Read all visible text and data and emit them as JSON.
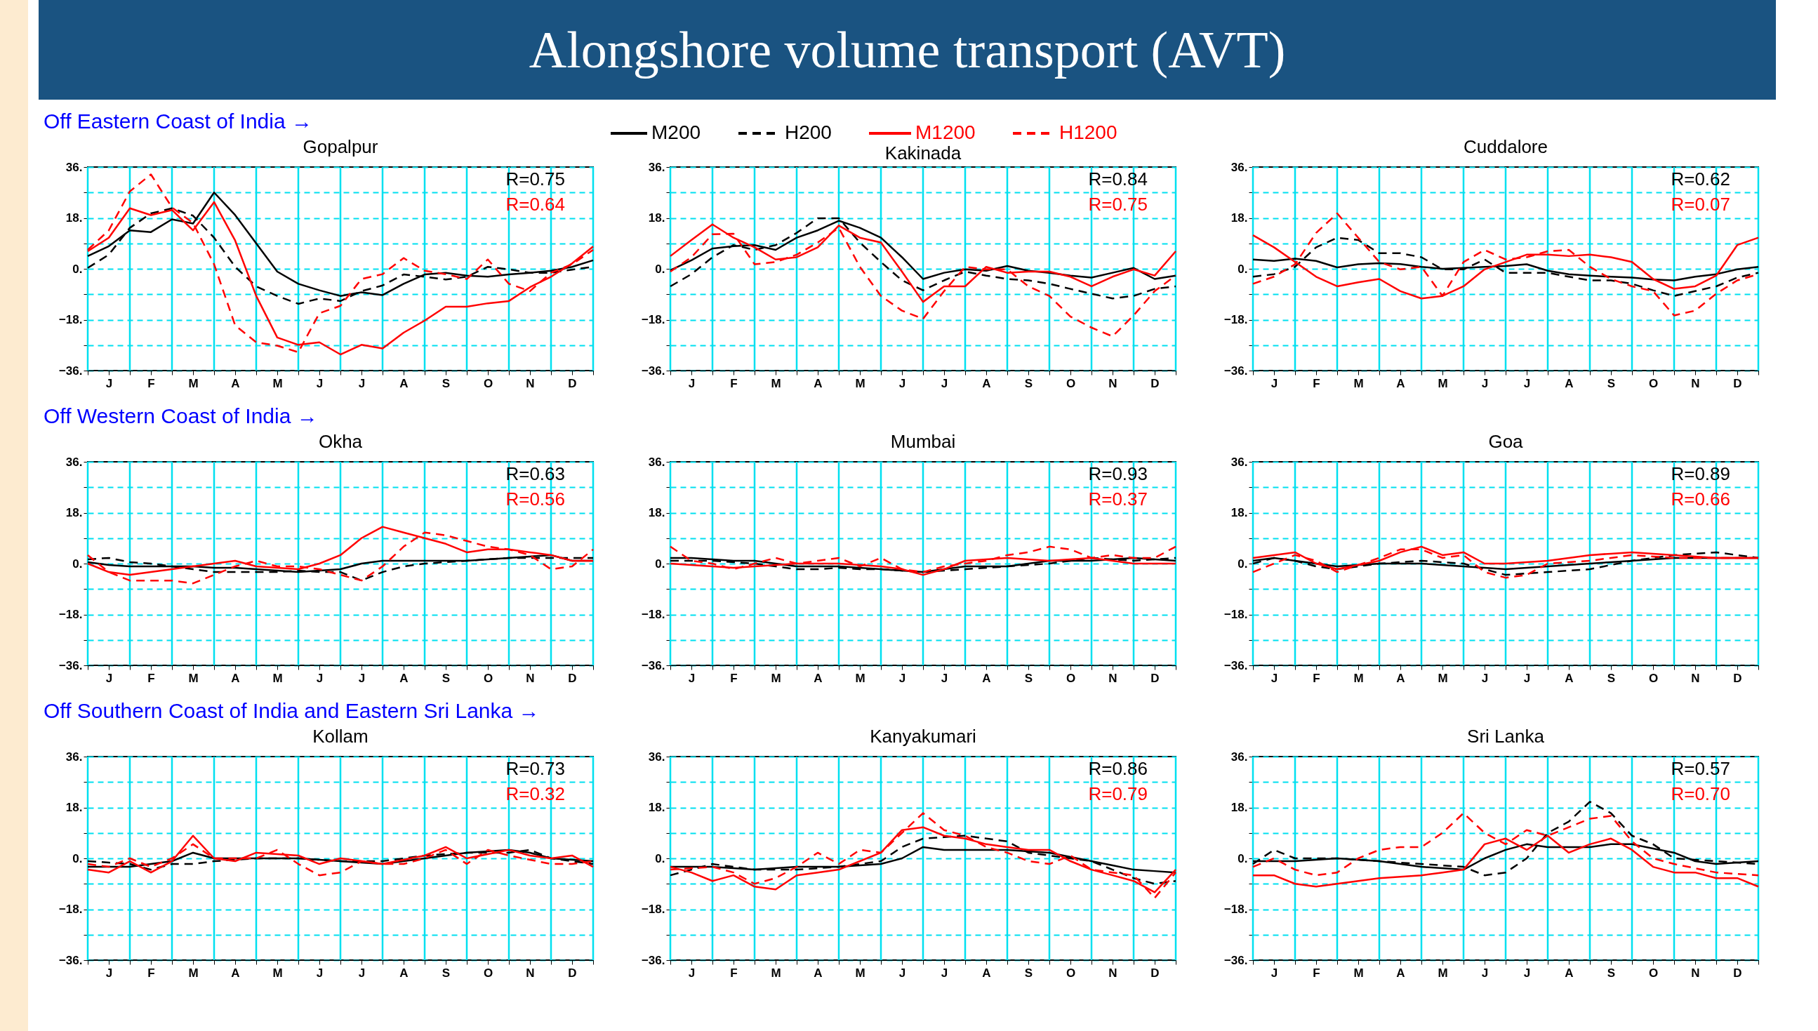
{
  "chart_data": [
    {
      "type": "other",
      "title": "Alongshore volume transport (AVT)"
    },
    {
      "type": "line",
      "title": "Gopalpur",
      "subtitle": "Off Eastern Coast of India →",
      "categories": [
        null,
        "J",
        null,
        "F",
        null,
        "M",
        null,
        "A",
        null,
        "M",
        null,
        "J",
        null,
        "J",
        null,
        "A",
        null,
        "S",
        null,
        "O",
        null,
        "N",
        null,
        "D",
        null
      ],
      "ylim": [
        -36,
        36
      ],
      "grid": true,
      "annotations": [
        "R=0.75",
        "R=0.64"
      ],
      "yticks": [
        {
          "value": -36,
          "label": "−36."
        },
        {
          "value": -27,
          "label": null
        },
        {
          "value": -18,
          "label": "−18."
        },
        {
          "value": -9,
          "label": null
        },
        {
          "value": 0,
          "label": "0."
        },
        {
          "value": 9,
          "label": null
        },
        {
          "value": 18,
          "label": "18."
        },
        {
          "value": 27,
          "label": null
        },
        {
          "value": 36,
          "label": "36."
        }
      ],
      "series": [
        {
          "color": "#000000",
          "line_style": "solid",
          "values": [
            4.5,
            8,
            13.6,
            13,
            17.5,
            16,
            27,
            19,
            9,
            -1,
            -5.3,
            -7.6,
            -9.6,
            -8.3,
            -9.3,
            -5.3,
            -2,
            -1.4,
            -2.4,
            -2.8,
            -2,
            -1.4,
            -0.7,
            0.7,
            3
          ]
        },
        {
          "color": "#000000",
          "line_style": "dashed",
          "values": [
            0.3,
            5,
            14.5,
            19.6,
            21.4,
            18.8,
            11,
            0.7,
            -6.2,
            -9.6,
            -12.4,
            -10.5,
            -11.4,
            -7.9,
            -5.9,
            -2,
            -2.8,
            -3.8,
            -2.8,
            0.7,
            -0.2,
            -1.4,
            -1.4,
            -0.3,
            0.7
          ]
        },
        {
          "color": "#ff0000",
          "line_style": "solid",
          "values": [
            6.2,
            11,
            21.4,
            19,
            20.8,
            13.6,
            23.6,
            10,
            -9.6,
            -24.3,
            -26.9,
            -26,
            -30.3,
            -26.9,
            -28.2,
            -22.6,
            -18.3,
            -13.4,
            -13.4,
            -12.2,
            -11.4,
            -6.5,
            -2.8,
            1.9,
            7.9
          ]
        },
        {
          "color": "#ff0000",
          "line_style": "dashed",
          "values": [
            6.7,
            13.6,
            27.4,
            33.4,
            21.7,
            16.2,
            1.6,
            -20,
            -26,
            -27.2,
            -29.5,
            -15.7,
            -13.1,
            -3.6,
            -1.9,
            3.8,
            -0.7,
            -1.9,
            -3.6,
            3.3,
            -5.3,
            -7.9,
            -1.4,
            1.6,
            6.7
          ]
        }
      ]
    },
    {
      "type": "line",
      "title": "Kakinada",
      "categories": [
        null,
        "J",
        null,
        "F",
        null,
        "M",
        null,
        "A",
        null,
        "M",
        null,
        "J",
        null,
        "J",
        null,
        "A",
        null,
        "S",
        null,
        "O",
        null,
        "N",
        null,
        "D",
        null
      ],
      "ylim": [
        -36,
        36
      ],
      "grid": true,
      "legend": "top",
      "annotations": [
        "R=0.84",
        "R=0.75"
      ],
      "yticks": [
        {
          "value": -36,
          "label": "−36."
        },
        {
          "value": -27,
          "label": null
        },
        {
          "value": -18,
          "label": "−18."
        },
        {
          "value": -9,
          "label": null
        },
        {
          "value": 0,
          "label": "0."
        },
        {
          "value": 9,
          "label": null
        },
        {
          "value": 18,
          "label": "18."
        },
        {
          "value": 27,
          "label": null
        },
        {
          "value": 36,
          "label": "36."
        }
      ],
      "series": [
        {
          "name": "M200",
          "color": "#000000",
          "line_style": "solid",
          "values": [
            -0.5,
            3,
            7.2,
            8,
            8.4,
            6.7,
            11,
            13.6,
            17,
            14.5,
            11,
            4.1,
            -3.6,
            -1.4,
            -0.2,
            -0.7,
            1,
            -0.7,
            -1.4,
            -2.4,
            -3.1,
            -1.4,
            0.3,
            -3.6,
            -2.4
          ]
        },
        {
          "name": "H200",
          "color": "#000000",
          "line_style": "dashed",
          "values": [
            -6.2,
            -1.9,
            4.1,
            8.4,
            6.7,
            8.4,
            12.7,
            17.9,
            17.9,
            9.3,
            2.4,
            -4.1,
            -7.6,
            -4.1,
            -1,
            -2.4,
            -3.6,
            -4.1,
            -5.3,
            -7.1,
            -8.8,
            -10.5,
            -9.6,
            -7.1,
            -6.2
          ]
        },
        {
          "name": "M1200",
          "color": "#ff0000",
          "line_style": "solid",
          "values": [
            4.5,
            10.2,
            15.7,
            11,
            7.6,
            3.3,
            4.1,
            7.6,
            15.3,
            11,
            9.3,
            -1,
            -11.7,
            -6.2,
            -6.2,
            0.7,
            -1.4,
            -1,
            -1,
            -2.8,
            -6.2,
            -2.8,
            -0.2,
            -2.4,
            6.2
          ]
        },
        {
          "name": "H1200",
          "color": "#ff0000",
          "line_style": "dashed",
          "values": [
            -1,
            4.1,
            12.2,
            12.4,
            1.6,
            2.4,
            5,
            9.3,
            14.5,
            0.7,
            -9.6,
            -14.8,
            -17.7,
            -7.9,
            0.7,
            -0.2,
            -0.2,
            -6.2,
            -9.6,
            -16.9,
            -20.8,
            -23.9,
            -16.5,
            -7.9,
            -2.4
          ]
        }
      ]
    },
    {
      "type": "line",
      "title": "Cuddalore",
      "categories": [
        null,
        "J",
        null,
        "F",
        null,
        "M",
        null,
        "A",
        null,
        "M",
        null,
        "J",
        null,
        "J",
        null,
        "A",
        null,
        "S",
        null,
        "O",
        null,
        "N",
        null,
        "D",
        null
      ],
      "ylim": [
        -36,
        36
      ],
      "grid": true,
      "annotations": [
        "R=0.62",
        "R=0.07"
      ],
      "yticks": [
        {
          "value": -36,
          "label": "−36."
        },
        {
          "value": -27,
          "label": null
        },
        {
          "value": -18,
          "label": "−18."
        },
        {
          "value": -9,
          "label": null
        },
        {
          "value": 0,
          "label": "0."
        },
        {
          "value": 9,
          "label": null
        },
        {
          "value": 18,
          "label": "18."
        },
        {
          "value": 27,
          "label": null
        },
        {
          "value": 36,
          "label": "36."
        }
      ],
      "series": [
        {
          "color": "#000000",
          "line_style": "solid",
          "values": [
            3.3,
            2.8,
            3.6,
            2.8,
            0.5,
            1.6,
            2,
            1.7,
            0.7,
            0,
            0.3,
            0.7,
            1,
            1.6,
            -0.7,
            -1.9,
            -2.4,
            -2.8,
            -3.1,
            -3.8,
            -4.1,
            -2.8,
            -1.9,
            -0.2,
            0.7
          ]
        },
        {
          "color": "#000000",
          "line_style": "dashed",
          "values": [
            -2.8,
            -1.9,
            0.7,
            7.6,
            11,
            10.2,
            5.5,
            5.5,
            4.1,
            -0.2,
            -0.2,
            3.3,
            -1.4,
            -1.4,
            -1.4,
            -2.8,
            -4.1,
            -4.1,
            -5.3,
            -7.6,
            -9.6,
            -7.9,
            -6.2,
            -3.1,
            -1.4
          ]
        },
        {
          "color": "#ff0000",
          "line_style": "solid",
          "values": [
            11.9,
            7.6,
            2.4,
            -2.8,
            -6.2,
            -4.8,
            -3.6,
            -7.9,
            -10.5,
            -9.6,
            -6.2,
            -0.2,
            2.4,
            5,
            5,
            4.5,
            5,
            4.1,
            2.4,
            -3.6,
            -7.1,
            -6.2,
            -2.4,
            8.4,
            11
          ]
        },
        {
          "color": "#ff0000",
          "line_style": "dashed",
          "values": [
            -5.3,
            -2.8,
            1.6,
            12.7,
            19.6,
            11,
            2.4,
            -0.2,
            0.7,
            -9.6,
            2.4,
            6.7,
            3.3,
            4.1,
            6.2,
            6.7,
            0.7,
            -3.6,
            -6.2,
            -7.9,
            -16.5,
            -14.8,
            -8.8,
            -4.1,
            -1.9
          ]
        }
      ]
    },
    {
      "type": "line",
      "title": "Okha",
      "subtitle": "Off Western Coast of India →",
      "categories": [
        null,
        "J",
        null,
        "F",
        null,
        "M",
        null,
        "A",
        null,
        "M",
        null,
        "J",
        null,
        "J",
        null,
        "A",
        null,
        "S",
        null,
        "O",
        null,
        "N",
        null,
        "D",
        null
      ],
      "ylim": [
        -36,
        36
      ],
      "grid": true,
      "annotations": [
        "R=0.63",
        "R=0.56"
      ],
      "yticks": [
        {
          "value": -36,
          "label": "−36."
        },
        {
          "value": -27,
          "label": null
        },
        {
          "value": -18,
          "label": "−18."
        },
        {
          "value": -9,
          "label": null
        },
        {
          "value": 0,
          "label": "0."
        },
        {
          "value": 9,
          "label": null
        },
        {
          "value": 18,
          "label": "18."
        },
        {
          "value": 27,
          "label": null
        },
        {
          "value": 36,
          "label": "36."
        }
      ],
      "series": [
        {
          "color": "#000000",
          "line_style": "solid",
          "values": [
            0.5,
            -0.5,
            -1,
            -1,
            -1,
            -1,
            -1.5,
            -1.5,
            -2,
            -2.5,
            -3,
            -2.5,
            -2,
            0,
            1,
            1,
            1,
            1,
            1,
            1.5,
            2,
            2.5,
            3,
            1,
            1
          ]
        },
        {
          "color": "#000000",
          "line_style": "dashed",
          "values": [
            1.5,
            2,
            0.5,
            0,
            -1,
            -2,
            -3,
            -3,
            -3,
            -3,
            -2.5,
            -3,
            -3,
            -6,
            -3,
            -1,
            0,
            0.5,
            1,
            1.5,
            2,
            2,
            2,
            2,
            2
          ]
        },
        {
          "color": "#ff0000",
          "line_style": "solid",
          "values": [
            0,
            -3,
            -4,
            -3,
            -2,
            -1,
            0,
            1,
            -1,
            -1.5,
            -2,
            0,
            3,
            9,
            13,
            11,
            9,
            7,
            4,
            5,
            5,
            4,
            3,
            1,
            1
          ]
        },
        {
          "color": "#ff0000",
          "line_style": "dashed",
          "values": [
            3,
            -3,
            -6,
            -6,
            -6,
            -7,
            -4,
            -1,
            1,
            -1,
            -1,
            -2,
            -4,
            -6,
            -1,
            6,
            11,
            10,
            8,
            6,
            5,
            3,
            -2,
            -1,
            5
          ]
        }
      ]
    },
    {
      "type": "line",
      "title": "Mumbai",
      "categories": [
        null,
        "J",
        null,
        "F",
        null,
        "M",
        null,
        "A",
        null,
        "M",
        null,
        "J",
        null,
        "J",
        null,
        "A",
        null,
        "S",
        null,
        "O",
        null,
        "N",
        null,
        "D",
        null
      ],
      "ylim": [
        -36,
        36
      ],
      "grid": true,
      "annotations": [
        "R=0.93",
        "R=0.37"
      ],
      "yticks": [
        {
          "value": -36,
          "label": "−36."
        },
        {
          "value": -27,
          "label": null
        },
        {
          "value": -18,
          "label": "−18."
        },
        {
          "value": -9,
          "label": null
        },
        {
          "value": 0,
          "label": "0."
        },
        {
          "value": 9,
          "label": null
        },
        {
          "value": 18,
          "label": "18."
        },
        {
          "value": 27,
          "label": null
        },
        {
          "value": 36,
          "label": "36."
        }
      ],
      "series": [
        {
          "color": "#000000",
          "line_style": "solid",
          "values": [
            2,
            2,
            1.5,
            1,
            1,
            0,
            -1,
            -1,
            -1,
            -1.5,
            -2,
            -2.5,
            -3,
            -2,
            -1,
            -1,
            -1,
            0,
            1,
            1,
            1,
            1.5,
            2,
            1.5,
            1
          ]
        },
        {
          "color": "#000000",
          "line_style": "dashed",
          "values": [
            1,
            1,
            1,
            0.5,
            0,
            -1,
            -2,
            -2,
            -1.5,
            -2,
            -2,
            -2.5,
            -3,
            -2.5,
            -2,
            -1.5,
            -1,
            -0.5,
            0,
            1,
            2,
            1.5,
            1,
            1.5,
            2
          ]
        },
        {
          "color": "#ff0000",
          "line_style": "solid",
          "values": [
            0,
            -0.5,
            -1,
            -1.5,
            -1,
            -0.5,
            0,
            0,
            0,
            -0.5,
            -1,
            -2,
            -4,
            -2,
            1,
            1.5,
            2,
            1.5,
            1,
            1.5,
            2,
            1,
            0,
            0,
            0
          ]
        },
        {
          "color": "#ff0000",
          "line_style": "dashed",
          "values": [
            6,
            1,
            0,
            -2,
            0,
            2,
            0,
            1,
            2,
            -1,
            2,
            -2,
            -3,
            -1,
            0,
            1,
            3,
            4,
            6,
            5,
            2,
            3,
            2,
            2,
            6
          ]
        }
      ]
    },
    {
      "type": "line",
      "title": "Goa",
      "categories": [
        null,
        "J",
        null,
        "F",
        null,
        "M",
        null,
        "A",
        null,
        "M",
        null,
        "J",
        null,
        "J",
        null,
        "A",
        null,
        "S",
        null,
        "O",
        null,
        "N",
        null,
        "D",
        null
      ],
      "ylim": [
        -36,
        36
      ],
      "grid": true,
      "annotations": [
        "R=0.89",
        "R=0.66"
      ],
      "yticks": [
        {
          "value": -36,
          "label": "−36."
        },
        {
          "value": -27,
          "label": null
        },
        {
          "value": -18,
          "label": "−18."
        },
        {
          "value": -9,
          "label": null
        },
        {
          "value": 0,
          "label": "0."
        },
        {
          "value": 9,
          "label": null
        },
        {
          "value": 18,
          "label": "18."
        },
        {
          "value": 27,
          "label": null
        },
        {
          "value": 36,
          "label": "36."
        }
      ],
      "series": [
        {
          "color": "#000000",
          "line_style": "solid",
          "values": [
            1,
            2,
            1,
            0,
            -1,
            -0.5,
            0,
            0,
            0,
            -0.5,
            -1,
            -1.5,
            -2,
            -1.5,
            -1,
            -0.5,
            0,
            0.5,
            1,
            1.5,
            2,
            2,
            2,
            2,
            2
          ]
        },
        {
          "color": "#000000",
          "line_style": "dashed",
          "values": [
            0,
            2,
            1,
            -1,
            -2,
            -1,
            0,
            0.5,
            1,
            0.5,
            0,
            -2,
            -4,
            -3.5,
            -3,
            -2.5,
            -2,
            -0.5,
            1,
            2,
            3,
            3.5,
            4,
            3,
            2
          ]
        },
        {
          "color": "#ff0000",
          "line_style": "solid",
          "values": [
            2,
            3,
            4,
            0,
            -2,
            -0.5,
            1,
            4,
            6,
            3,
            4,
            0,
            0,
            0.5,
            1,
            2,
            3,
            3.5,
            4,
            3.5,
            3,
            2.5,
            2,
            2,
            2
          ]
        },
        {
          "color": "#ff0000",
          "line_style": "dashed",
          "values": [
            -3,
            0,
            3,
            1,
            -3,
            -0.5,
            2,
            5,
            5,
            2,
            3,
            -3,
            -5,
            -4,
            0,
            0.5,
            1,
            2,
            3,
            2.5,
            2,
            2,
            2,
            2,
            2
          ]
        }
      ]
    },
    {
      "type": "line",
      "title": "Kollam",
      "subtitle": "Off Southern Coast of India and Eastern Sri Lanka →",
      "categories": [
        null,
        "J",
        null,
        "F",
        null,
        "M",
        null,
        "A",
        null,
        "M",
        null,
        "J",
        null,
        "J",
        null,
        "A",
        null,
        "S",
        null,
        "O",
        null,
        "N",
        null,
        "D",
        null
      ],
      "ylim": [
        -36,
        36
      ],
      "grid": true,
      "annotations": [
        "R=0.73",
        "R=0.32"
      ],
      "yticks": [
        {
          "value": -36,
          "label": "−36."
        },
        {
          "value": -27,
          "label": null
        },
        {
          "value": -18,
          "label": "−18."
        },
        {
          "value": -9,
          "label": null
        },
        {
          "value": 0,
          "label": "0."
        },
        {
          "value": 9,
          "label": null
        },
        {
          "value": 18,
          "label": "18."
        },
        {
          "value": 27,
          "label": null
        },
        {
          "value": 36,
          "label": "36."
        }
      ],
      "series": [
        {
          "color": "#000000",
          "line_style": "solid",
          "values": [
            -3,
            -3,
            -3,
            -2,
            -1,
            2,
            0,
            0,
            0,
            0,
            0,
            -0.5,
            -1,
            -1.5,
            -2,
            -1,
            0,
            1,
            2,
            2.5,
            3,
            2,
            0,
            -0.5,
            -1
          ]
        },
        {
          "color": "#000000",
          "line_style": "dashed",
          "values": [
            -1,
            -1.5,
            -2,
            -4,
            -2,
            -2,
            -1,
            -0.5,
            0,
            0,
            0,
            -0.5,
            -1,
            -1,
            -1,
            0,
            1,
            1.5,
            2,
            2,
            2,
            3,
            0,
            -1,
            -2
          ]
        },
        {
          "color": "#ff0000",
          "line_style": "solid",
          "values": [
            -4,
            -5,
            -1,
            -5,
            -1,
            8,
            0,
            -1,
            2,
            1.5,
            1,
            -2,
            0,
            -1,
            -2,
            -0.5,
            1,
            4,
            0,
            1.5,
            3,
            1,
            0,
            1,
            -3
          ]
        },
        {
          "color": "#ff0000",
          "line_style": "dashed",
          "values": [
            -2,
            -3,
            0,
            -3,
            0,
            5,
            0,
            0,
            0,
            3,
            -2,
            -6,
            -5,
            -1,
            -2,
            -2,
            0,
            3,
            -2,
            3,
            1,
            -0.5,
            -2,
            -2,
            -1
          ]
        }
      ]
    },
    {
      "type": "line",
      "title": "Kanyakumari",
      "categories": [
        null,
        "J",
        null,
        "F",
        null,
        "M",
        null,
        "A",
        null,
        "M",
        null,
        "J",
        null,
        "J",
        null,
        "A",
        null,
        "S",
        null,
        "O",
        null,
        "N",
        null,
        "D",
        null
      ],
      "ylim": [
        -36,
        36
      ],
      "grid": true,
      "annotations": [
        "R=0.86",
        "R=0.79"
      ],
      "yticks": [
        {
          "value": -36,
          "label": "−36."
        },
        {
          "value": -27,
          "label": null
        },
        {
          "value": -18,
          "label": "−18."
        },
        {
          "value": -9,
          "label": null
        },
        {
          "value": 0,
          "label": "0."
        },
        {
          "value": 9,
          "label": null
        },
        {
          "value": 18,
          "label": "18."
        },
        {
          "value": 27,
          "label": null
        },
        {
          "value": 36,
          "label": "36."
        }
      ],
      "series": [
        {
          "color": "#000000",
          "line_style": "solid",
          "values": [
            -3,
            -3,
            -3,
            -3.5,
            -4,
            -3.5,
            -3,
            -3,
            -3,
            -2.5,
            -2,
            0,
            4,
            3,
            3,
            3,
            3,
            2.5,
            2,
            0.5,
            -1,
            -2.5,
            -4,
            -4.5,
            -5
          ]
        },
        {
          "color": "#000000",
          "line_style": "dashed",
          "values": [
            -6,
            -4,
            -2,
            -3,
            -4,
            -4,
            -4,
            -3.5,
            -3,
            -2,
            -1,
            4,
            7,
            7.5,
            8,
            7,
            6,
            2,
            1,
            0,
            -1,
            -4,
            -7,
            -9,
            -8
          ]
        },
        {
          "color": "#ff0000",
          "line_style": "solid",
          "values": [
            -3,
            -5,
            -8,
            -6,
            -10,
            -11,
            -6,
            -5,
            -4,
            -1,
            2,
            10,
            11,
            8,
            7,
            5,
            4,
            3,
            3,
            -1,
            -4,
            -6,
            -8,
            -12,
            -4
          ]
        },
        {
          "color": "#ff0000",
          "line_style": "dashed",
          "values": [
            -4,
            -3.5,
            -3,
            -5,
            -9,
            -7,
            -3,
            2,
            -2,
            3,
            2,
            9,
            16,
            10,
            8,
            4,
            2,
            -1,
            -2,
            1,
            -4,
            -5,
            -6,
            -14,
            -5
          ]
        }
      ]
    },
    {
      "type": "line",
      "title": "Sri Lanka",
      "categories": [
        null,
        "J",
        null,
        "F",
        null,
        "M",
        null,
        "A",
        null,
        "M",
        null,
        "J",
        null,
        "J",
        null,
        "A",
        null,
        "S",
        null,
        "O",
        null,
        "N",
        null,
        "D",
        null
      ],
      "ylim": [
        -36,
        36
      ],
      "grid": true,
      "annotations": [
        "R=0.57",
        "R=0.70"
      ],
      "yticks": [
        {
          "value": -36,
          "label": "−36."
        },
        {
          "value": -27,
          "label": null
        },
        {
          "value": -18,
          "label": "−18."
        },
        {
          "value": -9,
          "label": null
        },
        {
          "value": 0,
          "label": "0."
        },
        {
          "value": 9,
          "label": null
        },
        {
          "value": 18,
          "label": "18."
        },
        {
          "value": 27,
          "label": null
        },
        {
          "value": 36,
          "label": "36."
        }
      ],
      "series": [
        {
          "color": "#000000",
          "line_style": "solid",
          "values": [
            -1,
            -1,
            -1,
            -0.5,
            0,
            -0.5,
            -1,
            -2,
            -3,
            -3.5,
            -4,
            0,
            3,
            5,
            4,
            4,
            4,
            5,
            5,
            3.5,
            2,
            -1,
            -2,
            -1.5,
            -1
          ]
        },
        {
          "color": "#000000",
          "line_style": "dashed",
          "values": [
            -2,
            3,
            0,
            0,
            0,
            -0.5,
            -1,
            -1.5,
            -2,
            -2.5,
            -3,
            -6,
            -5,
            0,
            9,
            13,
            20,
            16,
            8,
            5,
            0,
            -0.5,
            -1,
            -1.5,
            -2
          ]
        },
        {
          "color": "#ff0000",
          "line_style": "solid",
          "values": [
            -6,
            -6,
            -9,
            -10,
            -9,
            -8,
            -7,
            -6.5,
            -6,
            -5,
            -4,
            5,
            7,
            3,
            8,
            2,
            5,
            7,
            3,
            -3,
            -5,
            -5,
            -7,
            -7,
            -10
          ]
        },
        {
          "color": "#ff0000",
          "line_style": "dashed",
          "values": [
            -3,
            0,
            -4,
            -6,
            -5,
            0,
            3,
            4,
            4,
            9,
            16,
            9,
            5,
            10,
            8,
            11,
            14,
            15,
            6,
            0,
            -2,
            -3.5,
            -5,
            -5.5,
            -6
          ]
        }
      ]
    }
  ]
}
